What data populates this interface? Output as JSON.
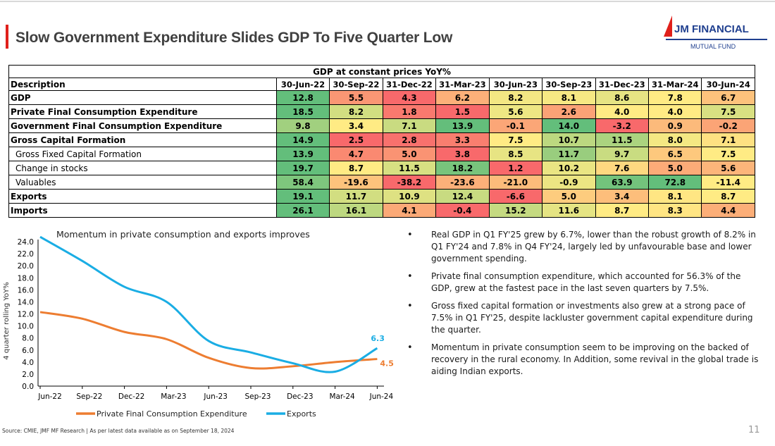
{
  "title": "Slow Government Expenditure Slides GDP To Five Quarter Low",
  "logo": {
    "name": "JM FINANCIAL",
    "sub": "MUTUAL FUND"
  },
  "table": {
    "super_header": "GDP at constant prices YoY%",
    "description_header": "Description",
    "columns": [
      "30-Jun-22",
      "30-Sep-22",
      "31-Dec-22",
      "31-Mar-23",
      "30-Jun-23",
      "30-Sep-23",
      "31-Dec-23",
      "31-Mar-24",
      "30-Jun-24"
    ],
    "rows": [
      {
        "label": "GDP",
        "bold": true,
        "values": [
          12.8,
          5.5,
          4.3,
          6.2,
          8.2,
          8.1,
          8.6,
          7.8,
          6.7
        ]
      },
      {
        "label": "Private Final Consumption Expenditure",
        "bold": true,
        "values": [
          18.5,
          8.2,
          1.8,
          1.5,
          5.6,
          2.6,
          4.0,
          4.0,
          7.5
        ]
      },
      {
        "label": "Government Final Consumption Expenditure",
        "bold": true,
        "values": [
          9.8,
          3.4,
          7.1,
          13.9,
          -0.1,
          14.0,
          -3.2,
          0.9,
          -0.2
        ]
      },
      {
        "label": "Gross Capital Formation",
        "bold": true,
        "values": [
          14.9,
          2.5,
          2.8,
          3.3,
          7.5,
          10.7,
          11.5,
          8.0,
          7.1
        ]
      },
      {
        "label": "Gross Fixed Capital Formation",
        "bold": false,
        "values": [
          13.9,
          4.7,
          5.0,
          3.8,
          8.5,
          11.7,
          9.7,
          6.5,
          7.5
        ]
      },
      {
        "label": "Change in stocks",
        "bold": false,
        "values": [
          19.7,
          8.7,
          11.5,
          18.2,
          1.2,
          10.2,
          7.6,
          5.0,
          5.6
        ]
      },
      {
        "label": "Valuables",
        "bold": false,
        "values": [
          58.4,
          -19.6,
          -38.2,
          -23.6,
          -21.0,
          -0.9,
          63.9,
          72.8,
          -11.4
        ]
      },
      {
        "label": "Exports",
        "bold": true,
        "values": [
          19.1,
          11.7,
          10.9,
          12.4,
          -6.6,
          5.0,
          3.4,
          8.1,
          8.7
        ]
      },
      {
        "label": "Imports",
        "bold": true,
        "values": [
          26.1,
          16.1,
          4.1,
          -0.4,
          15.2,
          11.6,
          8.7,
          8.3,
          4.4
        ]
      }
    ],
    "color_scale": {
      "low": "#F8696B",
      "mid": "#FFEB84",
      "high": "#63BE7B"
    }
  },
  "chart_data": {
    "type": "line",
    "title": "Momentum in private consumption and exports improves",
    "ylabel": "4 quarter rolling YoY%",
    "xlabel": "",
    "categories": [
      "Jun-22",
      "Sep-22",
      "Dec-22",
      "Mar-23",
      "Jun-23",
      "Sep-23",
      "Dec-23",
      "Mar-24",
      "Jun-24"
    ],
    "yticks": [
      "0.0",
      "2.0",
      "4.0",
      "6.0",
      "8.0",
      "10.0",
      "12.0",
      "14.0",
      "16.0",
      "18.0",
      "20.0",
      "22.0",
      "24.0"
    ],
    "ylim": [
      0,
      24
    ],
    "grid": false,
    "legend": "bottom",
    "series": [
      {
        "name": "Private Final Consumption Expenditure",
        "color": "#ED7D31",
        "values": [
          12.3,
          11.2,
          9.0,
          7.8,
          4.7,
          3.0,
          3.3,
          4.0,
          4.5
        ],
        "end_label": "4.5"
      },
      {
        "name": "Exports",
        "color": "#1AADE4",
        "values": [
          24.8,
          20.8,
          16.5,
          14.0,
          7.5,
          5.6,
          3.8,
          2.4,
          6.3
        ],
        "end_label": "6.3"
      }
    ]
  },
  "bullets": [
    "Real GDP in Q1 FY'25 grew by 6.7%, lower than the robust growth of 8.2% in Q1 FY'24 and 7.8% in Q4 FY'24, largely led by unfavourable base and lower government spending.",
    "Private final consumption expenditure, which accounted for 56.3% of the GDP, grew at the fastest pace in the last seven quarters by 7.5%.",
    "Gross fixed capital formation or investments also grew at a strong pace of 7.5% in Q1 FY'25, despite lackluster government capital expenditure during the quarter.",
    "Momentum in private consumption seem to be improving on the backed of recovery in the rural economy. In Addition, some revival in the global trade is aiding Indian exports."
  ],
  "source": "Source: CMIE, JMF MF Research  |  As per latest data available as on September 18, 2024",
  "page_number": "11"
}
